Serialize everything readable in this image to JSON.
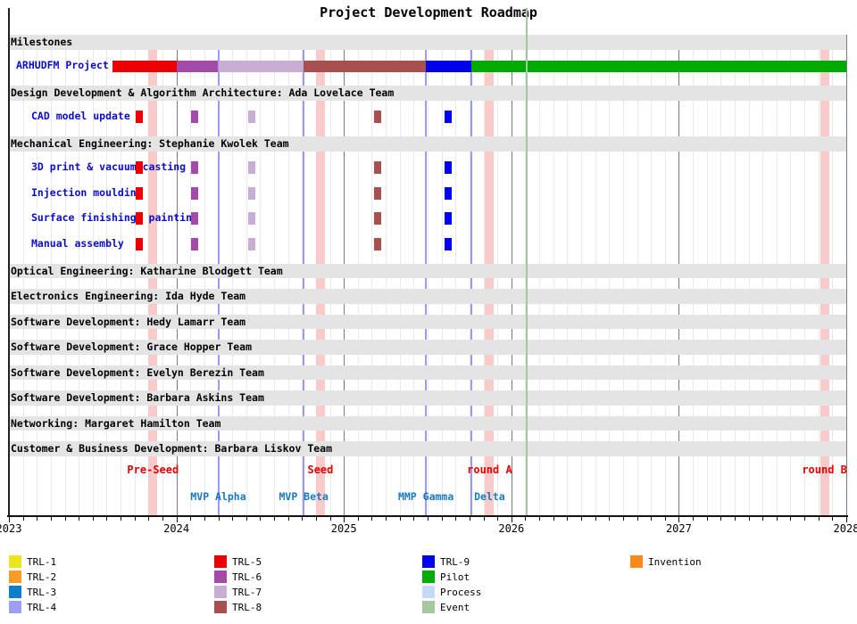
{
  "title": "Project Development Roadmap",
  "palette": {
    "TRL-1": "#e9e619",
    "TRL-2": "#f89b28",
    "TRL-3": "#0d7fc6",
    "TRL-4": "#9e9ef2",
    "TRL-5": "#ee0000",
    "TRL-6": "#a44aa8",
    "TRL-7": "#c9aed4",
    "TRL-8": "#a85050",
    "TRL-9": "#0000ee",
    "Pilot": "#00ab00",
    "Process": "#c6d8f8",
    "Event": "#a5c8a0",
    "Invention": "#f8891c"
  },
  "chart_data": {
    "type": "gantt",
    "title": "Project Development Roadmap",
    "x_axis": {
      "min": 2023,
      "max": 2028,
      "tick_labels": [
        "2023",
        "2024",
        "2025",
        "2026",
        "2027",
        "2028"
      ],
      "minor_tick": "monthly",
      "grid": true
    },
    "sections": [
      {
        "header": "Milestones",
        "tasks": [
          {
            "label": "ARHUDFM Project",
            "segments": [
              {
                "category": "TRL-5",
                "start": 2023.62,
                "end": 2024.0
              },
              {
                "category": "TRL-6",
                "start": 2024.0,
                "end": 2024.25
              },
              {
                "category": "TRL-7",
                "start": 2024.25,
                "end": 2024.76
              },
              {
                "category": "TRL-8",
                "start": 2024.76,
                "end": 2025.49
              },
              {
                "category": "TRL-9",
                "start": 2025.49,
                "end": 2025.76
              },
              {
                "category": "Pilot",
                "start": 2025.76,
                "end": 2028.0
              }
            ],
            "markers": []
          }
        ]
      },
      {
        "header": "Design Development & Algorithm Architecture: Ada Lovelace Team",
        "tasks": [
          {
            "label": "CAD model update",
            "segments": [],
            "markers": [
              {
                "category": "TRL-5",
                "year": 2023.78
              },
              {
                "category": "TRL-6",
                "year": 2024.11
              },
              {
                "category": "TRL-7",
                "year": 2024.45
              },
              {
                "category": "TRL-8",
                "year": 2025.2
              },
              {
                "category": "TRL-9",
                "year": 2025.62
              }
            ]
          }
        ]
      },
      {
        "header": "Mechanical Engineering: Stephanie Kwolek Team",
        "tasks": [
          {
            "label": "3D print & vacuum casting",
            "segments": [],
            "markers": [
              {
                "category": "TRL-5",
                "year": 2023.78
              },
              {
                "category": "TRL-6",
                "year": 2024.11
              },
              {
                "category": "TRL-7",
                "year": 2024.45
              },
              {
                "category": "TRL-8",
                "year": 2025.2
              },
              {
                "category": "TRL-9",
                "year": 2025.62
              }
            ]
          },
          {
            "label": "Injection moulding",
            "segments": [],
            "markers": [
              {
                "category": "TRL-5",
                "year": 2023.78
              },
              {
                "category": "TRL-6",
                "year": 2024.11
              },
              {
                "category": "TRL-7",
                "year": 2024.45
              },
              {
                "category": "TRL-8",
                "year": 2025.2
              },
              {
                "category": "TRL-9",
                "year": 2025.62
              }
            ]
          },
          {
            "label": "Surface finishing, painting",
            "segments": [],
            "markers": [
              {
                "category": "TRL-5",
                "year": 2023.78
              },
              {
                "category": "TRL-6",
                "year": 2024.11
              },
              {
                "category": "TRL-7",
                "year": 2024.45
              },
              {
                "category": "TRL-8",
                "year": 2025.2
              },
              {
                "category": "TRL-9",
                "year": 2025.62
              }
            ]
          },
          {
            "label": "Manual assembly",
            "segments": [],
            "markers": [
              {
                "category": "TRL-5",
                "year": 2023.78
              },
              {
                "category": "TRL-6",
                "year": 2024.11
              },
              {
                "category": "TRL-7",
                "year": 2024.45
              },
              {
                "category": "TRL-8",
                "year": 2025.2
              },
              {
                "category": "TRL-9",
                "year": 2025.62
              }
            ]
          }
        ]
      },
      {
        "header": "Optical Engineering: Katharine Blodgett Team",
        "tasks": []
      },
      {
        "header": "Electronics Engineering: Ida Hyde Team",
        "tasks": []
      },
      {
        "header": "Software Development: Hedy Lamarr Team",
        "tasks": []
      },
      {
        "header": "Software Development: Grace Hopper Team",
        "tasks": []
      },
      {
        "header": "Software Development: Evelyn Berezin Team",
        "tasks": []
      },
      {
        "header": "Software Development: Barbara Askins Team",
        "tasks": []
      },
      {
        "header": "Networking: Margaret Hamilton Team",
        "tasks": []
      },
      {
        "header": "Customer & Business Development: Barbara Liskov Team",
        "tasks": []
      }
    ],
    "funding_rounds": [
      {
        "label": "Pre-Seed",
        "year": 2023.86
      },
      {
        "label": "Seed",
        "year": 2024.86
      },
      {
        "label": "round A",
        "year": 2025.87
      },
      {
        "label": "round B",
        "year": 2027.87
      }
    ],
    "milestones": [
      {
        "label": "MVP Alpha",
        "year": 2024.25
      },
      {
        "label": "MVP Beta",
        "year": 2024.76
      },
      {
        "label": "MMP Gamma",
        "year": 2025.49
      },
      {
        "label": "Delta",
        "year": 2025.76,
        "label_year": 2025.87
      }
    ],
    "event_line": {
      "year": 2026.09
    }
  },
  "legend": {
    "columns": [
      [
        {
          "label": "TRL-1",
          "category": "TRL-1"
        },
        {
          "label": "TRL-2",
          "category": "TRL-2"
        },
        {
          "label": "TRL-3",
          "category": "TRL-3"
        },
        {
          "label": "TRL-4",
          "category": "TRL-4"
        }
      ],
      [
        {
          "label": "TRL-5",
          "category": "TRL-5"
        },
        {
          "label": "TRL-6",
          "category": "TRL-6"
        },
        {
          "label": "TRL-7",
          "category": "TRL-7"
        },
        {
          "label": "TRL-8",
          "category": "TRL-8"
        }
      ],
      [
        {
          "label": "TRL-9",
          "category": "TRL-9"
        },
        {
          "label": "Pilot",
          "category": "Pilot"
        },
        {
          "label": "Process",
          "category": "Process"
        },
        {
          "label": "Event",
          "category": "Event"
        }
      ],
      [
        {
          "label": "Invention",
          "category": "Invention"
        }
      ]
    ]
  }
}
